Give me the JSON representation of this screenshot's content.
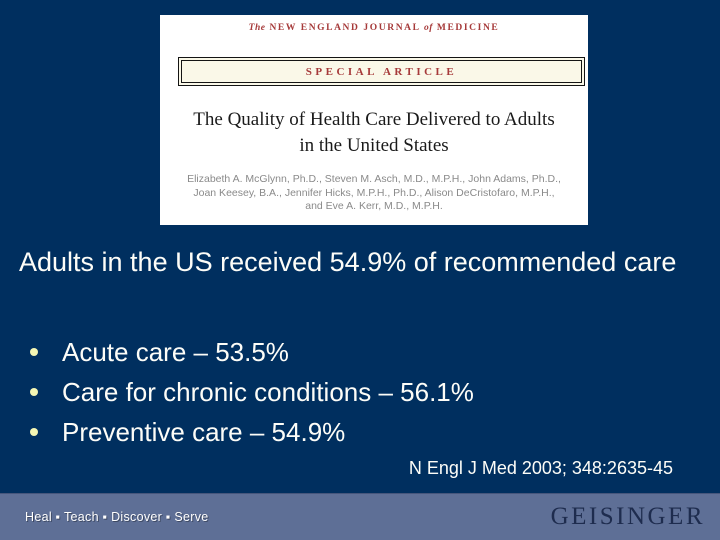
{
  "colors": {
    "slide-bg": "#002F5F",
    "footer-bg": "#5E6F96",
    "cream": "#FAF8E8",
    "nejm-red": "#A63A3A",
    "bullet-dot": "#F4F6B4",
    "geisinger-navy": "#1E2C4E",
    "author-gray": "#8A8A8A",
    "text-white": "#FDFDF8"
  },
  "journal_card": {
    "masthead": {
      "the": "The",
      "part1": "NEW ENGLAND JOURNAL",
      "of": "of",
      "part2": "MEDICINE"
    },
    "banner": "SPECIAL ARTICLE",
    "title": "The Quality of Health Care Delivered to Adults\nin the United States",
    "authors": "Elizabeth A. McGlynn, Ph.D., Steven M. Asch, M.D., M.P.H., John Adams, Ph.D.,\nJoan Keesey, B.A., Jennifer Hicks, M.P.H., Ph.D., Alison DeCristofaro, M.P.H.,\nand Eve A. Kerr, M.D., M.P.H."
  },
  "headline": "Adults in the US received 54.9% of recommended care",
  "bullets": [
    {
      "text": "Acute care – 53.5%"
    },
    {
      "text": "Care for chronic conditions – 56.1%"
    },
    {
      "text": "Preventive care – 54.9%"
    }
  ],
  "citation": "N Engl J Med 2003; 348:2635-45",
  "footer": {
    "motto": "Heal ▪ Teach ▪ Discover ▪ Serve",
    "logo": "GEISINGER"
  }
}
